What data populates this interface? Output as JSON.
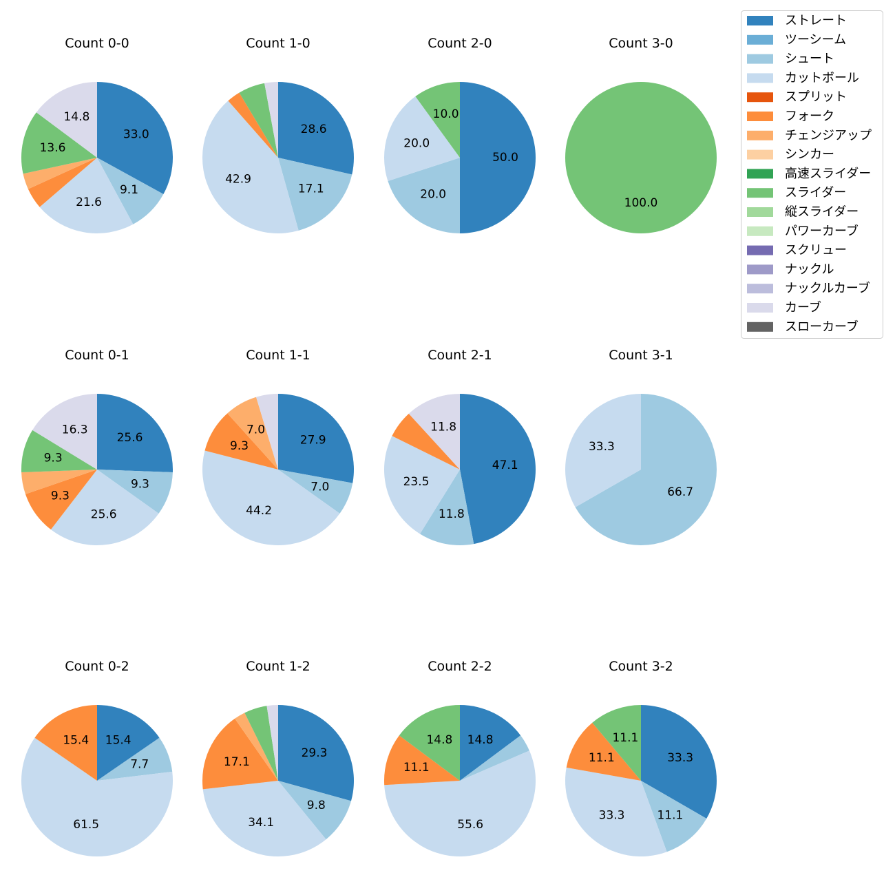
{
  "chart_data": {
    "type": "pie",
    "pitch_types": [
      {
        "name": "ストレート",
        "color": "#3182bd"
      },
      {
        "name": "ツーシーム",
        "color": "#6baed6"
      },
      {
        "name": "シュート",
        "color": "#9ecae1"
      },
      {
        "name": "カットボール",
        "color": "#c6dbef"
      },
      {
        "name": "スプリット",
        "color": "#e6550d"
      },
      {
        "name": "フォーク",
        "color": "#fd8d3c"
      },
      {
        "name": "チェンジアップ",
        "color": "#fdae6b"
      },
      {
        "name": "シンカー",
        "color": "#fdd0a2"
      },
      {
        "name": "高速スライダー",
        "color": "#31a354"
      },
      {
        "name": "スライダー",
        "color": "#74c476"
      },
      {
        "name": "縦スライダー",
        "color": "#a1d99b"
      },
      {
        "name": "パワーカーブ",
        "color": "#c7e9c0"
      },
      {
        "name": "スクリュー",
        "color": "#756bb1"
      },
      {
        "name": "ナックル",
        "color": "#9e9ac8"
      },
      {
        "name": "ナックルカーブ",
        "color": "#bcbddc"
      },
      {
        "name": "カーブ",
        "color": "#dadaeb"
      },
      {
        "name": "スローカーブ",
        "color": "#636363"
      }
    ],
    "label_threshold_pct": 7,
    "charts": [
      {
        "title": "Count 0-0",
        "slices": [
          {
            "type": "ストレート",
            "value": 33.0
          },
          {
            "type": "シュート",
            "value": 9.1
          },
          {
            "type": "カットボール",
            "value": 21.6
          },
          {
            "type": "フォーク",
            "value": 4.5
          },
          {
            "type": "チェンジアップ",
            "value": 3.4
          },
          {
            "type": "スライダー",
            "value": 13.6
          },
          {
            "type": "カーブ",
            "value": 14.8
          }
        ]
      },
      {
        "title": "Count 1-0",
        "slices": [
          {
            "type": "ストレート",
            "value": 28.6
          },
          {
            "type": "シュート",
            "value": 17.1
          },
          {
            "type": "カットボール",
            "value": 42.9
          },
          {
            "type": "フォーク",
            "value": 2.9
          },
          {
            "type": "スライダー",
            "value": 5.7
          },
          {
            "type": "カーブ",
            "value": 2.9
          }
        ]
      },
      {
        "title": "Count 2-0",
        "slices": [
          {
            "type": "ストレート",
            "value": 50.0
          },
          {
            "type": "シュート",
            "value": 20.0
          },
          {
            "type": "カットボール",
            "value": 20.0
          },
          {
            "type": "スライダー",
            "value": 10.0
          }
        ]
      },
      {
        "title": "Count 3-0",
        "slices": [
          {
            "type": "スライダー",
            "value": 100.0
          }
        ]
      },
      {
        "title": "Count 0-1",
        "slices": [
          {
            "type": "ストレート",
            "value": 25.6
          },
          {
            "type": "シュート",
            "value": 9.3
          },
          {
            "type": "カットボール",
            "value": 25.6
          },
          {
            "type": "フォーク",
            "value": 9.3
          },
          {
            "type": "チェンジアップ",
            "value": 4.7
          },
          {
            "type": "スライダー",
            "value": 9.3
          },
          {
            "type": "カーブ",
            "value": 16.3
          }
        ]
      },
      {
        "title": "Count 1-1",
        "slices": [
          {
            "type": "ストレート",
            "value": 27.9
          },
          {
            "type": "シュート",
            "value": 7.0
          },
          {
            "type": "カットボール",
            "value": 44.2
          },
          {
            "type": "フォーク",
            "value": 9.3
          },
          {
            "type": "チェンジアップ",
            "value": 7.0
          },
          {
            "type": "カーブ",
            "value": 4.7
          }
        ]
      },
      {
        "title": "Count 2-1",
        "slices": [
          {
            "type": "ストレート",
            "value": 47.1
          },
          {
            "type": "シュート",
            "value": 11.8
          },
          {
            "type": "カットボール",
            "value": 23.5
          },
          {
            "type": "フォーク",
            "value": 5.9
          },
          {
            "type": "カーブ",
            "value": 11.8
          }
        ]
      },
      {
        "title": "Count 3-1",
        "slices": [
          {
            "type": "シュート",
            "value": 66.7
          },
          {
            "type": "カットボール",
            "value": 33.3
          }
        ]
      },
      {
        "title": "Count 0-2",
        "slices": [
          {
            "type": "ストレート",
            "value": 15.4
          },
          {
            "type": "シュート",
            "value": 7.7
          },
          {
            "type": "カットボール",
            "value": 61.5
          },
          {
            "type": "フォーク",
            "value": 15.4
          }
        ]
      },
      {
        "title": "Count 1-2",
        "slices": [
          {
            "type": "ストレート",
            "value": 29.3
          },
          {
            "type": "シュート",
            "value": 9.8
          },
          {
            "type": "カットボール",
            "value": 34.1
          },
          {
            "type": "フォーク",
            "value": 17.1
          },
          {
            "type": "チェンジアップ",
            "value": 2.4
          },
          {
            "type": "スライダー",
            "value": 4.9
          },
          {
            "type": "カーブ",
            "value": 2.4
          }
        ]
      },
      {
        "title": "Count 2-2",
        "slices": [
          {
            "type": "ストレート",
            "value": 14.8
          },
          {
            "type": "シュート",
            "value": 3.7
          },
          {
            "type": "カットボール",
            "value": 55.6
          },
          {
            "type": "フォーク",
            "value": 11.1
          },
          {
            "type": "スライダー",
            "value": 14.8
          }
        ]
      },
      {
        "title": "Count 3-2",
        "slices": [
          {
            "type": "ストレート",
            "value": 33.3
          },
          {
            "type": "シュート",
            "value": 11.1
          },
          {
            "type": "カットボール",
            "value": 33.3
          },
          {
            "type": "フォーク",
            "value": 11.1
          },
          {
            "type": "スライダー",
            "value": 11.1
          }
        ]
      }
    ]
  }
}
